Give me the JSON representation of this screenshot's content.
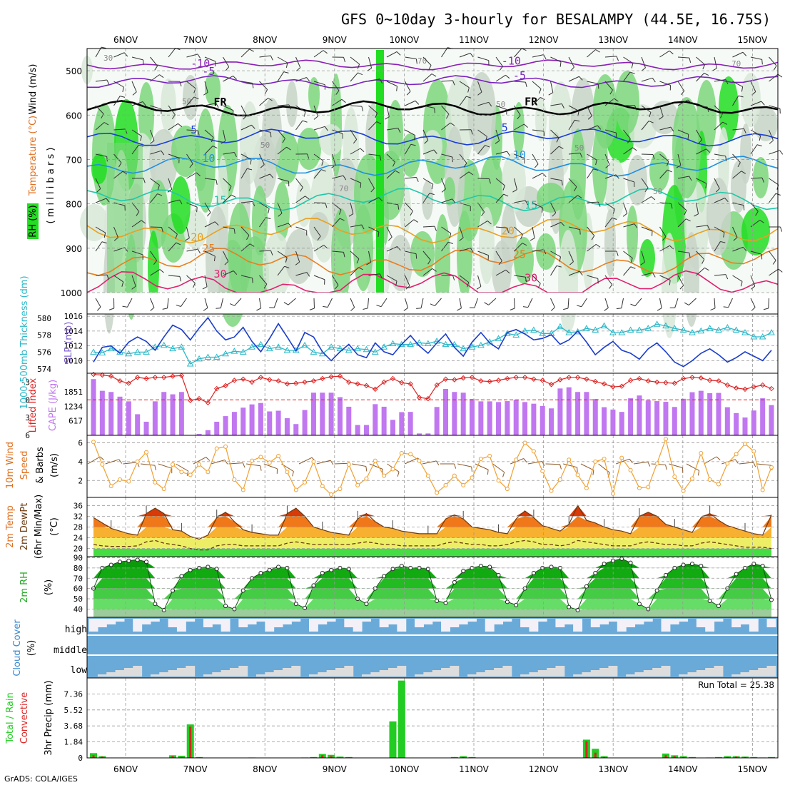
{
  "title": "GFS 0~10day 3-hourly for BESALAMPY (44.5E, 16.75S)",
  "credit": "GrADS: COLA/IGES",
  "colors": {
    "rh_light": "#d8e8d8",
    "rh_mid": "#c8d4c8",
    "rh_green": "#7cd67c",
    "rh_bright": "#22dd22",
    "temp_neg10": "#8a1fb5",
    "temp_neg5": "#7a20c0",
    "freezing": "#000000",
    "temp5": "#1a3dd6",
    "temp10": "#1f8fe0",
    "temp15": "#1ec8a8",
    "temp20": "#e8a020",
    "temp25": "#e87e20",
    "temp30": "#e02070",
    "thickness": "#2bb8c8",
    "slp": "#1a3dcc",
    "lifted": "#dd2222",
    "cape": "#c077f0",
    "wind": "#f0a030",
    "barb": "#8b5a2b",
    "cloud": "#6aaad8",
    "precip_total": "#22cc22",
    "precip_conv": "#dd2222"
  },
  "chart_data": [
    {
      "type": "heatmap",
      "panel": "profile",
      "y_axis_label": "Wind (m/s)",
      "y_axis_label2": "Temperature (°C)",
      "y_axis_label3": "( m i l l i b a r s )",
      "legend_label": "RH (%)",
      "x_ticks": [
        "6NOV",
        "7NOV",
        "8NOV",
        "9NOV",
        "10NOV",
        "11NOV",
        "12NOV",
        "13NOV",
        "14NOV",
        "15NOV"
      ],
      "y_ticks": [
        500,
        600,
        700,
        800,
        900,
        1000
      ],
      "ylim": [
        450,
        1000
      ],
      "contours": [
        {
          "label": "-10",
          "level_mb": 487
        },
        {
          "label": "-5",
          "level_mb": 525
        },
        {
          "label": "FR",
          "level_mb": 585
        },
        {
          "label": "5",
          "level_mb": 650
        },
        {
          "label": "10",
          "level_mb": 715
        },
        {
          "label": "15",
          "level_mb": 790
        },
        {
          "label": "20",
          "level_mb": 860
        },
        {
          "label": "25",
          "level_mb": 930
        },
        {
          "label": "30",
          "level_mb": 985
        }
      ],
      "rh_labels": [
        "30",
        "50",
        "50",
        "70",
        "70",
        "50",
        "50",
        "50",
        "70"
      ]
    },
    {
      "type": "line",
      "panel": "thickness_slp",
      "y_axis_label": "1000-500mb Thickness (dm)",
      "y_axis_label2": "SLP (mb)",
      "y_ticks_left": [
        574,
        576,
        578,
        580
      ],
      "y_ticks_right": [
        1010,
        1012,
        1014,
        1016
      ],
      "series": [
        {
          "name": "1000-500mb Thickness",
          "ylim": [
            573.5,
            580.5
          ],
          "values": [
            576.0,
            575.9,
            576.4,
            576.0,
            575.8,
            576.0,
            576.0,
            576.6,
            576.8,
            576.4,
            576.6,
            574.6,
            575.2,
            575.4,
            575.4,
            575.8,
            576.1,
            576.0,
            576.6,
            576.9,
            576.4,
            576.6,
            576.2,
            576.2,
            576.8,
            576.0,
            575.8,
            576.6,
            576.4,
            576.2,
            576.4,
            576.3,
            576.0,
            576.6,
            577.0,
            576.9,
            576.9,
            577.1,
            577.0,
            577.3,
            576.9,
            576.9,
            576.4,
            576.6,
            576.8,
            577.2,
            577.6,
            578.2,
            578.0,
            578.5,
            578.6,
            578.2,
            578.2,
            579.0,
            578.3,
            578.4,
            578.8,
            578.6,
            579.1,
            578.3,
            578.3,
            578.6,
            578.6,
            578.8,
            579.3,
            579.1,
            578.8,
            578.6,
            578.3,
            578.5,
            578.8,
            578.6,
            578.9,
            578.6,
            578.3,
            577.8,
            577.8,
            578.3
          ]
        },
        {
          "name": "SLP",
          "ylim": [
            1008.3,
            1016.3
          ],
          "values": [
            1009.8,
            1011.8,
            1012.0,
            1011.0,
            1012.5,
            1013.2,
            1012.6,
            1011.4,
            1013.2,
            1014.8,
            1014.2,
            1012.8,
            1014.4,
            1015.8,
            1014.0,
            1012.8,
            1013.2,
            1014.5,
            1012.6,
            1011.2,
            1013.0,
            1015.0,
            1013.2,
            1011.3,
            1013.8,
            1013.2,
            1011.2,
            1010.0,
            1011.2,
            1012.2,
            1010.8,
            1010.4,
            1012.4,
            1011.2,
            1010.8,
            1012.2,
            1013.4,
            1012.0,
            1011.0,
            1012.4,
            1013.6,
            1011.8,
            1010.6,
            1012.5,
            1013.8,
            1012.4,
            1011.6,
            1013.8,
            1014.2,
            1013.6,
            1012.8,
            1013.0,
            1013.5,
            1012.2,
            1012.8,
            1014.0,
            1012.5,
            1010.8,
            1011.8,
            1012.6,
            1011.4,
            1011.0,
            1010.2,
            1011.6,
            1012.4,
            1011.2,
            1009.8,
            1009.2,
            1010.0,
            1011.0,
            1011.6,
            1010.8,
            1009.8,
            1010.4,
            1011.2,
            1010.6,
            1010.0,
            1011.4
          ]
        }
      ]
    },
    {
      "type": "bar",
      "panel": "cape_lifted",
      "y_axis_label": "Lifted Index",
      "y_axis_label2": "CAPE (J/kg)",
      "y_ticks_left": [
        "-3",
        "0",
        "3",
        "6"
      ],
      "y_ticks_right": [
        617,
        1234,
        1851
      ],
      "series": [
        {
          "name": "CAPE",
          "ylim": [
            0,
            2650
          ],
          "values": [
            2400,
            1900,
            1850,
            1650,
            1450,
            900,
            580,
            1450,
            1850,
            1750,
            1850,
            0,
            60,
            220,
            580,
            820,
            1000,
            1180,
            1320,
            1380,
            1020,
            1050,
            730,
            480,
            1080,
            1820,
            1820,
            1820,
            1630,
            1220,
            440,
            440,
            1330,
            1220,
            660,
            990,
            1000,
            80,
            80,
            1210,
            1980,
            1850,
            1820,
            1550,
            1450,
            1450,
            1420,
            1460,
            1520,
            1420,
            1350,
            1250,
            1150,
            2000,
            2050,
            1850,
            1850,
            1550,
            1200,
            1100,
            1000,
            1580,
            1700,
            1490,
            1460,
            1430,
            1210,
            1560,
            1840,
            1900,
            1800,
            1810,
            1200,
            950,
            760,
            1060,
            1580,
            1290
          ]
        },
        {
          "name": "Lifted Index",
          "ylim": [
            6,
            -4.5
          ],
          "values": [
            -4.3,
            -4.2,
            -4.0,
            -3.2,
            -2.8,
            -3.8,
            -3.6,
            -3.8,
            -3.8,
            -4.0,
            -4.1,
            0.1,
            -0.2,
            0.5,
            -1.9,
            -2.4,
            -3.3,
            -3.5,
            -3.0,
            -3.8,
            -3.4,
            -3.2,
            -2.7,
            -2.8,
            -3.0,
            -3.2,
            -3.6,
            -3.9,
            -4.0,
            -3.0,
            -2.7,
            -2.4,
            -1.8,
            -3.0,
            -3.6,
            -2.9,
            -2.7,
            -0.4,
            -0.2,
            -2.5,
            -3.5,
            -3.4,
            -3.7,
            -3.8,
            -3.2,
            -3.1,
            -3.3,
            -3.6,
            -3.8,
            -3.8,
            -3.5,
            -3.3,
            -2.6,
            -3.4,
            -3.8,
            -3.8,
            -3.5,
            -3.1,
            -2.7,
            -2.2,
            -2.3,
            -3.3,
            -3.6,
            -3.2,
            -3.0,
            -2.9,
            -2.8,
            -3.6,
            -3.8,
            -3.7,
            -3.3,
            -3.2,
            -2.5,
            -2.0,
            -1.8,
            -2.2,
            -2.5,
            -1.9
          ]
        }
      ]
    },
    {
      "type": "line",
      "panel": "wind10m",
      "y_axis_label": "10m Wind",
      "y_axis_label2": "Speed",
      "y_axis_label3": "& Barbs",
      "y_axis_unit": "(m/s)",
      "y_ticks": [
        2,
        4,
        6
      ],
      "ylim": [
        0.2,
        6.8
      ],
      "series": [
        {
          "name": "10m Wind Speed",
          "values": [
            6.1,
            3.7,
            1.4,
            2.1,
            1.9,
            4.0,
            5.0,
            1.8,
            1.1,
            3.7,
            2.9,
            2.6,
            3.7,
            2.9,
            5.4,
            5.6,
            2.1,
            1.0,
            4.1,
            4.5,
            3.9,
            4.6,
            2.9,
            1.0,
            1.8,
            4.0,
            1.4,
            0.5,
            1.1,
            3.7,
            1.5,
            2.2,
            4.1,
            2.5,
            3.2,
            4.9,
            4.8,
            4.1,
            2.5,
            0.7,
            1.5,
            2.5,
            1.5,
            2.3,
            4.3,
            4.6,
            2.0,
            1.1,
            4.2,
            6.0,
            5.1,
            3.0,
            0.9,
            2.1,
            4.2,
            2.6,
            1.2,
            4.0,
            4.3,
            0.6,
            4.4,
            3.1,
            1.2,
            1.3,
            3.8,
            6.4,
            2.4,
            0.9,
            2.2,
            4.9,
            2.1,
            1.6,
            3.8,
            4.8,
            5.9,
            5.1,
            1.0,
            3.4
          ]
        }
      ]
    },
    {
      "type": "area",
      "panel": "temp2m",
      "y_axis_label": "2m Temp",
      "y_axis_label2": "2m DewPt",
      "y_axis_label3": "(6hr Min/Max)",
      "y_axis_unit": "(°C)",
      "y_ticks": [
        20,
        24,
        28,
        32,
        36
      ],
      "ylim": [
        17,
        39
      ],
      "series": [
        {
          "name": "2m Temp",
          "values": [
            31.5,
            29.5,
            27.5,
            26.5,
            25.5,
            25.0,
            33.0,
            35.0,
            33.0,
            27.0,
            26.5,
            24.5,
            23.5,
            25.0,
            31.5,
            33.5,
            30.0,
            27.0,
            26.0,
            25.5,
            25.0,
            25.0,
            33.0,
            35.0,
            32.0,
            28.0,
            27.0,
            26.0,
            25.5,
            25.0,
            31.0,
            33.0,
            30.0,
            28.0,
            27.5,
            26.5,
            26.0,
            25.5,
            25.5,
            25.5,
            31.0,
            32.5,
            31.0,
            28.0,
            27.5,
            27.0,
            26.0,
            25.5,
            31.0,
            34.0,
            31.5,
            28.5,
            27.5,
            26.5,
            29.0,
            36.0,
            30.5,
            29.5,
            28.0,
            27.0,
            26.5,
            25.5,
            32.0,
            33.5,
            32.0,
            29.0,
            28.0,
            27.0,
            26.0,
            31.5,
            33.0,
            30.5,
            28.5,
            27.5,
            26.5,
            25.5,
            25.0,
            32.5
          ]
        },
        {
          "name": "2m DewPt",
          "values": [
            21.5,
            21.0,
            20.8,
            20.8,
            20.8,
            21.0,
            22.5,
            23.0,
            22.0,
            21.5,
            21.0,
            20.0,
            19.5,
            19.5,
            21.0,
            21.5,
            21.5,
            21.0,
            21.0,
            21.0,
            21.0,
            21.0,
            22.0,
            22.5,
            22.0,
            21.5,
            21.5,
            21.5,
            21.5,
            21.5,
            22.0,
            22.5,
            22.0,
            21.5,
            21.5,
            21.0,
            21.0,
            21.0,
            21.0,
            21.0,
            22.0,
            22.5,
            22.0,
            21.5,
            21.5,
            21.0,
            21.0,
            21.5,
            22.5,
            23.0,
            22.5,
            21.5,
            21.5,
            21.0,
            21.5,
            23.0,
            22.5,
            22.0,
            21.5,
            21.0,
            21.0,
            21.0,
            22.0,
            22.5,
            22.0,
            21.5,
            21.5,
            21.0,
            21.0,
            22.0,
            22.5,
            22.0,
            21.5,
            21.0,
            20.5,
            20.5,
            20.5,
            20.0
          ]
        }
      ]
    },
    {
      "type": "area",
      "panel": "rh2m",
      "y_axis_label": "2m RH",
      "y_axis_unit": "(%)",
      "y_ticks": [
        40,
        50,
        60,
        70,
        80,
        90
      ],
      "ylim": [
        32,
        91
      ],
      "series": [
        {
          "name": "2m RH",
          "values": [
            60,
            80,
            83,
            86,
            87,
            88,
            86,
            45,
            39,
            58,
            72,
            78,
            80,
            81,
            79,
            43,
            40,
            58,
            70,
            75,
            78,
            81,
            80,
            45,
            41,
            63,
            75,
            78,
            80,
            79,
            50,
            45,
            60,
            72,
            79,
            82,
            80,
            80,
            79,
            48,
            46,
            66,
            77,
            80,
            82,
            81,
            73,
            47,
            44,
            60,
            75,
            80,
            81,
            80,
            42,
            39,
            62,
            75,
            84,
            87,
            89,
            85,
            45,
            40,
            58,
            73,
            80,
            83,
            84,
            82,
            48,
            43,
            60,
            74,
            80,
            84,
            82,
            49
          ]
        }
      ]
    },
    {
      "type": "heatmap",
      "panel": "cloud",
      "y_axis_label": "Cloud Cover",
      "y_axis_unit": "(%)",
      "row_labels": [
        "high",
        "middle",
        "low"
      ]
    },
    {
      "type": "bar",
      "panel": "precip",
      "y_axis_label": "3hr Precip (mm)",
      "y_axis_label2": "Total / Rain",
      "y_axis_label3": "Convective",
      "y_ticks": [
        0,
        1.84,
        3.68,
        5.52,
        7.36
      ],
      "y_tick_labels": [
        "0",
        "1.84",
        "3.68",
        "5.52",
        "7.36"
      ],
      "ylim": [
        0,
        9.2
      ],
      "annotation": "Run Total = 25.38",
      "series": [
        {
          "name": "Total",
          "values": [
            0.55,
            0.2,
            0,
            0,
            0,
            0,
            0,
            0,
            0,
            0.3,
            0.25,
            3.85,
            0.1,
            0,
            0,
            0,
            0,
            0,
            0.05,
            0,
            0,
            0,
            0,
            0,
            0.05,
            0.1,
            0.45,
            0.35,
            0.15,
            0.1,
            0,
            0,
            0,
            0,
            4.2,
            8.9,
            0,
            0,
            0,
            0,
            0,
            0.1,
            0.2,
            0.1,
            0,
            0,
            0,
            0,
            0,
            0,
            0,
            0,
            0,
            0,
            0,
            0,
            2.1,
            1.05,
            0.2,
            0,
            0,
            0,
            0,
            0,
            0,
            0.5,
            0.3,
            0.2,
            0.1,
            0,
            0.05,
            0.1,
            0.2,
            0.2,
            0.15,
            0.1,
            0.05,
            0.1
          ]
        },
        {
          "name": "Convective",
          "values": [
            0.3,
            0.15,
            0,
            0,
            0,
            0,
            0,
            0,
            0,
            0.2,
            0.1,
            3.6,
            0.05,
            0,
            0,
            0,
            0,
            0,
            0,
            0,
            0,
            0,
            0,
            0,
            0,
            0.05,
            0.3,
            0.2,
            0.05,
            0.05,
            0,
            0,
            0,
            0,
            0,
            0,
            0,
            0,
            0,
            0,
            0,
            0.05,
            0.1,
            0.05,
            0,
            0,
            0,
            0,
            0,
            0,
            0,
            0,
            0,
            0,
            0,
            0,
            1.9,
            0.6,
            0.1,
            0,
            0,
            0,
            0,
            0,
            0,
            0.3,
            0.2,
            0.1,
            0.05,
            0,
            0,
            0.05,
            0.1,
            0.15,
            0.1,
            0.05,
            0,
            0.05
          ]
        }
      ]
    }
  ]
}
